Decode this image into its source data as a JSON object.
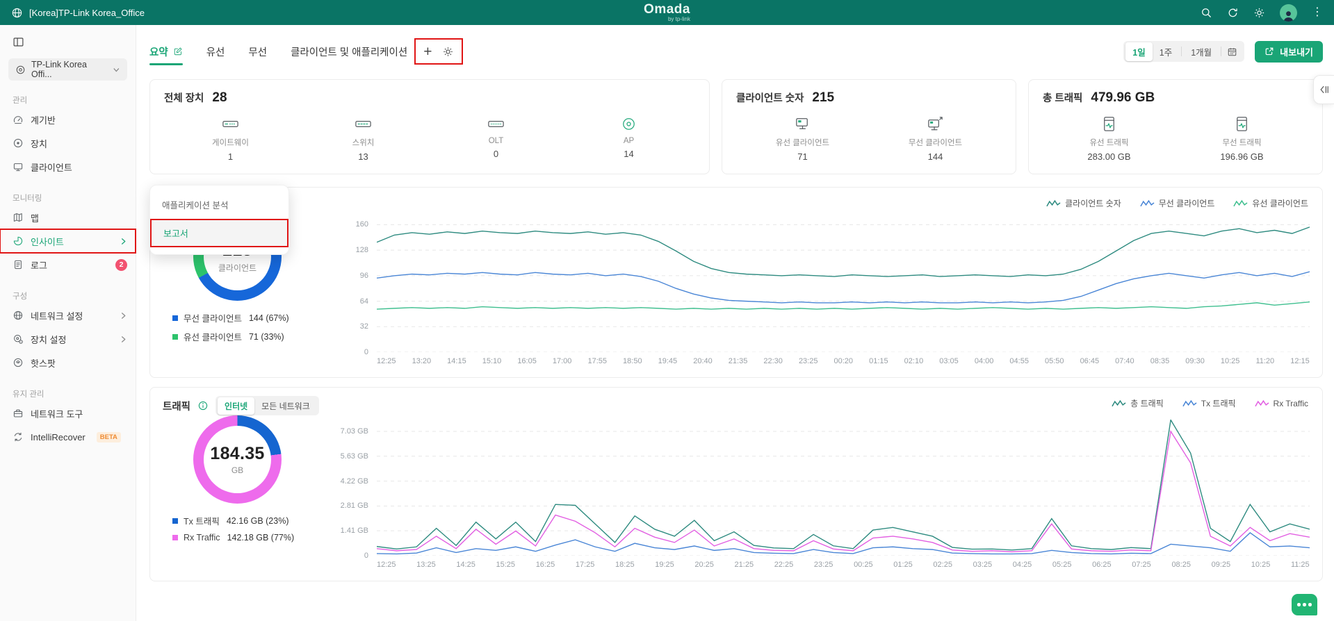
{
  "header": {
    "site_label": "[Korea]TP-Link Korea_Office",
    "logo": "Omada",
    "logo_sub": "by tp-link",
    "icons": [
      "search-icon",
      "refresh-icon",
      "brightness-icon",
      "user-avatar",
      "more-menu-icon"
    ]
  },
  "sidebar": {
    "site_selector": {
      "label": "TP-Link Korea Offi...",
      "icon": "site-pin-icon"
    },
    "sections": [
      {
        "title": "관리",
        "items": [
          {
            "id": "dashboard",
            "label": "계기반",
            "icon": "dashboard-icon"
          },
          {
            "id": "devices",
            "label": "장치",
            "icon": "devices-icon"
          },
          {
            "id": "clients",
            "label": "클라이언트",
            "icon": "clients-icon"
          }
        ]
      },
      {
        "title": "모니터링",
        "items": [
          {
            "id": "map",
            "label": "맵",
            "icon": "map-icon"
          },
          {
            "id": "insight",
            "label": "인사이트",
            "icon": "insight-pie-icon",
            "active": true,
            "chevron": true,
            "red_box": true
          },
          {
            "id": "logs",
            "label": "로그",
            "icon": "log-icon",
            "badge": "2"
          }
        ]
      },
      {
        "title": "구성",
        "items": [
          {
            "id": "network-settings",
            "label": "네트워크 설정",
            "icon": "network-globe-icon",
            "chevron": true
          },
          {
            "id": "device-settings",
            "label": "장치 설정",
            "icon": "device-settings-icon",
            "chevron": true
          },
          {
            "id": "hotspot",
            "label": "핫스팟",
            "icon": "hotspot-icon"
          }
        ]
      },
      {
        "title": "유지 관리",
        "items": [
          {
            "id": "network-tools",
            "label": "네트워크 도구",
            "icon": "toolbox-icon"
          },
          {
            "id": "intellirecover",
            "label": "IntelliRecover",
            "icon": "recover-icon",
            "beta": "BETA"
          }
        ]
      }
    ]
  },
  "tabs": {
    "items": [
      {
        "label": "요약",
        "active": true,
        "edit_icon": true
      },
      {
        "label": "유선"
      },
      {
        "label": "무선"
      },
      {
        "label": "클라이언트 및 애플리케이션"
      }
    ],
    "add_label": "+"
  },
  "time_range": {
    "options": [
      "1일",
      "1주",
      "1개월"
    ],
    "selected": "1일"
  },
  "export_button": {
    "label": "내보내기"
  },
  "popup": {
    "items": [
      {
        "label": "애플리케이션 분석"
      },
      {
        "label": "보고서",
        "active": true
      }
    ]
  },
  "stat_cards": [
    {
      "title": "전체 장치",
      "value": "28",
      "items": [
        {
          "icon": "gateway-icon",
          "label": "게이트웨이",
          "value": "1"
        },
        {
          "icon": "switch-icon",
          "label": "스위치",
          "value": "13"
        },
        {
          "icon": "olt-icon",
          "label": "OLT",
          "value": "0"
        },
        {
          "icon": "ap-icon",
          "label": "AP",
          "value": "14",
          "green": true
        }
      ]
    },
    {
      "title": "클라이언트 숫자",
      "value": "215",
      "items": [
        {
          "icon": "wired-client-icon",
          "label": "유선 클라이언트",
          "value": "71"
        },
        {
          "icon": "wireless-client-icon",
          "label": "무선 클라이언트",
          "value": "144"
        }
      ]
    },
    {
      "title": "총 트래픽",
      "value": "479.96 GB",
      "items": [
        {
          "icon": "wired-traffic-icon",
          "label": "유선 트래픽",
          "value": "283.00 GB"
        },
        {
          "icon": "wireless-traffic-icon",
          "label": "무선 트래픽",
          "value": "196.96 GB"
        }
      ]
    }
  ],
  "clients_panel": {
    "donut": {
      "center_value": "215",
      "center_label": "클라이언트",
      "segments": [
        {
          "label": "무선 클라이언트",
          "value": "144 (67%)",
          "pct": 67,
          "color": "#1667d9"
        },
        {
          "label": "유선 클라이언트",
          "value": "71 (33%)",
          "pct": 33,
          "color": "#2dc36c"
        }
      ]
    },
    "legend": [
      {
        "label": "클라이언트 숫자",
        "color": "#2e8b80"
      },
      {
        "label": "무선 클라이언트",
        "color": "#4a86d6"
      },
      {
        "label": "유선 클라이언트",
        "color": "#3fbf8f"
      }
    ]
  },
  "traffic_panel": {
    "title": "트래픽",
    "toggle": {
      "options": [
        "인터넷",
        "모든 네트워크"
      ],
      "selected": "인터넷"
    },
    "donut": {
      "center_value": "184.35",
      "center_label": "GB",
      "segments": [
        {
          "label": "Tx 트래픽",
          "value": "42.16 GB (23%)",
          "pct": 23,
          "color": "#1565d0"
        },
        {
          "label": "Rx Traffic",
          "value": "142.18 GB (77%)",
          "pct": 77,
          "color": "#ee6bec"
        }
      ]
    },
    "legend": [
      {
        "label": "총 트래픽",
        "color": "#2e8b80"
      },
      {
        "label": "Tx 트래픽",
        "color": "#4a86d6"
      },
      {
        "label": "Rx Traffic",
        "color": "#e25fe2"
      }
    ]
  },
  "chart_data": [
    {
      "type": "line",
      "title": "",
      "ylim": [
        0,
        160
      ],
      "ymax_render": 170,
      "grid": true,
      "legend_position": "top-right",
      "y_ticks": [
        {
          "v": 0,
          "label": "0"
        },
        {
          "v": 32,
          "label": "32"
        },
        {
          "v": 64,
          "label": "64"
        },
        {
          "v": 96,
          "label": "96"
        },
        {
          "v": 128,
          "label": "128"
        },
        {
          "v": 160,
          "label": "160"
        }
      ],
      "x_ticks": [
        "12:25",
        "13:20",
        "14:15",
        "15:10",
        "16:05",
        "17:00",
        "17:55",
        "18:50",
        "19:45",
        "20:40",
        "21:35",
        "22:30",
        "23:25",
        "00:20",
        "01:15",
        "02:10",
        "03:05",
        "04:00",
        "04:55",
        "05:50",
        "06:45",
        "07:40",
        "08:35",
        "09:30",
        "10:25",
        "11:20",
        "12:15"
      ],
      "series": [
        {
          "name": "클라이언트 숫자",
          "color": "#2e8b80",
          "values": [
            138,
            147,
            150,
            148,
            151,
            149,
            152,
            150,
            149,
            152,
            150,
            149,
            151,
            148,
            150,
            147,
            139,
            127,
            114,
            105,
            100,
            98,
            97,
            96,
            97,
            96,
            95,
            97,
            96,
            95,
            96,
            97,
            95,
            96,
            97,
            96,
            95,
            97,
            96,
            98,
            104,
            114,
            127,
            140,
            149,
            152,
            149,
            146,
            152,
            155,
            150,
            153,
            149,
            157
          ]
        },
        {
          "name": "무선 클라이언트",
          "color": "#4a86d6",
          "values": [
            93,
            96,
            98,
            97,
            99,
            98,
            100,
            98,
            97,
            100,
            98,
            97,
            99,
            96,
            98,
            95,
            89,
            80,
            73,
            68,
            65,
            64,
            63,
            62,
            63,
            62,
            62,
            63,
            62,
            63,
            62,
            63,
            62,
            62,
            63,
            62,
            63,
            62,
            63,
            65,
            70,
            78,
            86,
            92,
            96,
            99,
            96,
            93,
            97,
            100,
            96,
            99,
            95,
            101
          ]
        },
        {
          "name": "유선 클라이언트",
          "color": "#3fbf8f",
          "values": [
            54,
            55,
            56,
            55,
            56,
            55,
            57,
            56,
            55,
            56,
            55,
            56,
            55,
            56,
            55,
            56,
            55,
            54,
            55,
            54,
            55,
            54,
            55,
            54,
            55,
            54,
            55,
            54,
            55,
            56,
            55,
            54,
            55,
            54,
            55,
            56,
            55,
            54,
            55,
            54,
            55,
            56,
            55,
            56,
            57,
            56,
            55,
            57,
            58,
            60,
            62,
            59,
            61,
            63
          ]
        }
      ]
    },
    {
      "type": "line",
      "title": "",
      "ylim": [
        0,
        7.03
      ],
      "ymax_render": 7.7,
      "grid": true,
      "legend_position": "top-right",
      "y_ticks": [
        {
          "v": 0,
          "label": "0"
        },
        {
          "v": 1.41,
          "label": "1.41 GB"
        },
        {
          "v": 2.81,
          "label": "2.81 GB"
        },
        {
          "v": 4.22,
          "label": "4.22 GB"
        },
        {
          "v": 5.63,
          "label": "5.63 GB"
        },
        {
          "v": 7.03,
          "label": "7.03 GB"
        }
      ],
      "x_ticks": [
        "12:25",
        "13:25",
        "14:25",
        "15:25",
        "16:25",
        "17:25",
        "18:25",
        "19:25",
        "20:25",
        "21:25",
        "22:25",
        "23:25",
        "00:25",
        "01:25",
        "02:25",
        "03:25",
        "04:25",
        "05:25",
        "06:25",
        "07:25",
        "08:25",
        "09:25",
        "10:25",
        "11:25"
      ],
      "series": [
        {
          "name": "총 트래픽",
          "color": "#2e8b80",
          "values": [
            0.52,
            0.38,
            0.5,
            1.55,
            0.58,
            1.9,
            0.95,
            1.9,
            0.8,
            2.9,
            2.85,
            1.8,
            0.75,
            2.25,
            1.5,
            1.1,
            2.0,
            0.85,
            1.35,
            0.58,
            0.44,
            0.4,
            1.2,
            0.56,
            0.4,
            1.45,
            1.6,
            1.35,
            1.1,
            0.47,
            0.37,
            0.38,
            0.32,
            0.4,
            2.1,
            0.56,
            0.4,
            0.35,
            0.46,
            0.4,
            7.68,
            5.8,
            1.55,
            0.8,
            2.9,
            1.35,
            1.8,
            1.5
          ]
        },
        {
          "name": "Tx 트래픽",
          "color": "#4a86d6",
          "values": [
            0.12,
            0.1,
            0.15,
            0.45,
            0.18,
            0.4,
            0.3,
            0.5,
            0.25,
            0.6,
            0.9,
            0.5,
            0.25,
            0.7,
            0.45,
            0.35,
            0.55,
            0.3,
            0.4,
            0.18,
            0.14,
            0.12,
            0.35,
            0.18,
            0.12,
            0.45,
            0.5,
            0.4,
            0.35,
            0.15,
            0.12,
            0.1,
            0.1,
            0.12,
            0.3,
            0.18,
            0.12,
            0.1,
            0.14,
            0.12,
            0.65,
            0.55,
            0.45,
            0.25,
            1.3,
            0.5,
            0.55,
            0.45
          ]
        },
        {
          "name": "Rx Traffic",
          "color": "#e25fe2",
          "values": [
            0.4,
            0.28,
            0.35,
            1.1,
            0.4,
            1.5,
            0.65,
            1.4,
            0.55,
            2.3,
            1.95,
            1.3,
            0.5,
            1.55,
            1.05,
            0.75,
            1.45,
            0.55,
            0.95,
            0.4,
            0.3,
            0.28,
            0.85,
            0.38,
            0.28,
            1.0,
            1.1,
            0.95,
            0.75,
            0.32,
            0.25,
            0.28,
            0.22,
            0.28,
            1.8,
            0.38,
            0.28,
            0.25,
            0.32,
            0.28,
            7.03,
            5.25,
            1.1,
            0.55,
            1.6,
            0.85,
            1.25,
            1.05
          ]
        }
      ]
    }
  ],
  "floating": {
    "collapse_tab_icon": "collapse-left-icon",
    "chat_icon": "chat-dots-icon"
  },
  "annotations": {
    "color": "#e01515",
    "boxes": [
      "sidebar-insight-item",
      "tabs-add-and-settings",
      "popup-report-item"
    ]
  },
  "colors": {
    "header_bg": "#0a7465",
    "accent_green": "#1aa576",
    "annotation_red": "#e01515",
    "badge_red": "#f25270",
    "beta_orange": "#ef8b32",
    "chat_green": "#21b573"
  }
}
